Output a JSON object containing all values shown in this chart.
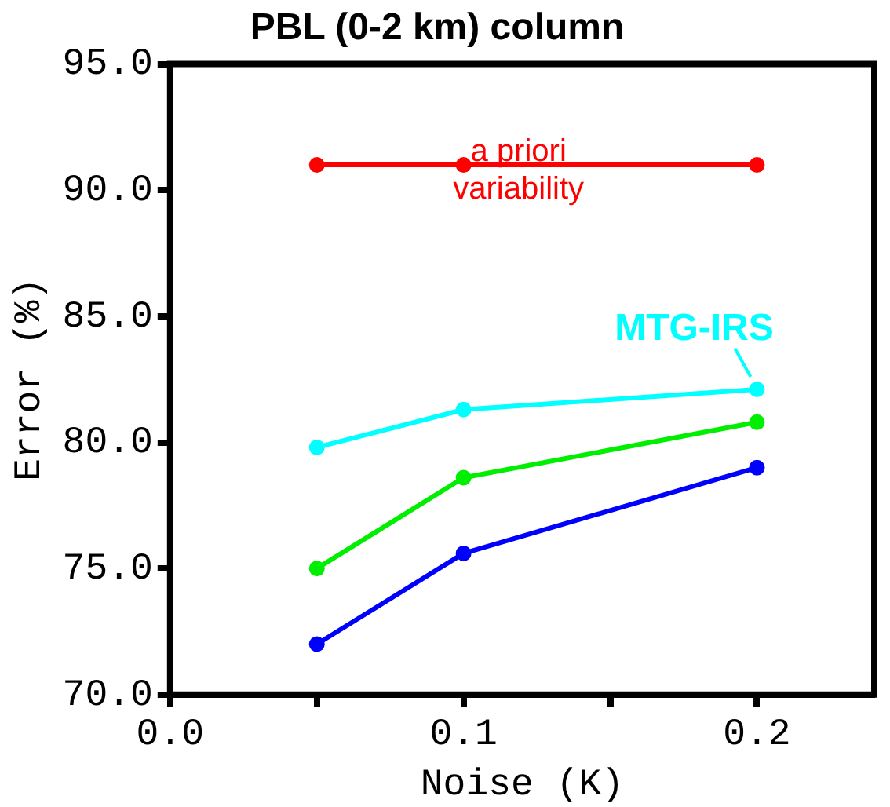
{
  "chart_data": {
    "type": "line",
    "title": "PBL (0-2 km) column",
    "xlabel": "Noise (K)",
    "ylabel": "Error (%)",
    "x": [
      0.05,
      0.1,
      0.2
    ],
    "series": [
      {
        "name": "a priori variability",
        "color": "#ff0000",
        "values": [
          91.0,
          91.0,
          91.0
        ]
      },
      {
        "name": "MTG-IRS",
        "color": "#00ffff",
        "values": [
          79.8,
          81.3,
          82.1
        ]
      },
      {
        "color": "#00ee00",
        "values": [
          75.0,
          78.6,
          80.8
        ]
      },
      {
        "color": "#0000ff",
        "values": [
          72.0,
          75.6,
          79.0
        ]
      }
    ],
    "xlim": [
      0,
      0.24
    ],
    "xticks": [
      {
        "value": 0,
        "label": "0.0"
      },
      {
        "value": 0.05,
        "label": null
      },
      {
        "value": 0.1,
        "label": "0.1"
      },
      {
        "value": 0.15,
        "label": null
      },
      {
        "value": 0.2,
        "label": "0.2"
      }
    ],
    "ylim": [
      70,
      95
    ],
    "yticks": [
      {
        "value": 70,
        "label": "70.0"
      },
      {
        "value": 75,
        "label": "75.0"
      },
      {
        "value": 80,
        "label": "80.0"
      },
      {
        "value": 85,
        "label": "85.0"
      },
      {
        "value": 90,
        "label": "90.0"
      },
      {
        "value": 95,
        "label": "95.0"
      }
    ],
    "grid": false,
    "legend": false,
    "marker": "circle",
    "line_style": "solid"
  }
}
